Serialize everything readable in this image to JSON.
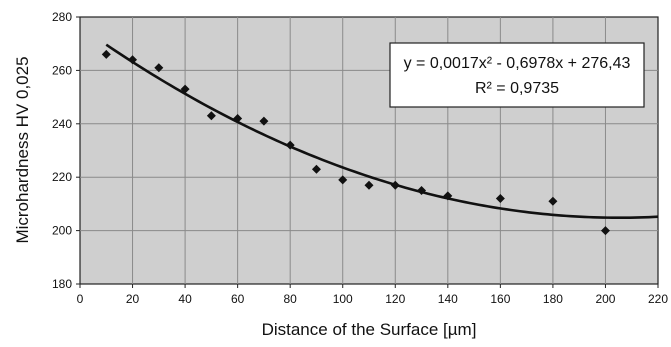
{
  "chart_data": {
    "type": "scatter",
    "xlabel": "Distance of the Surface [µm]",
    "ylabel": "Microhardness HV 0,025",
    "xlim": [
      0,
      220
    ],
    "ylim": [
      180,
      280
    ],
    "xticks": [
      0,
      20,
      40,
      60,
      80,
      100,
      120,
      140,
      160,
      180,
      200,
      220
    ],
    "yticks": [
      180,
      200,
      220,
      240,
      260,
      280
    ],
    "grid": true,
    "series": [
      {
        "x": [
          10,
          20,
          30,
          40,
          50,
          60,
          70,
          80,
          90,
          100,
          110,
          120,
          130,
          140,
          160,
          180,
          200
        ],
        "y": [
          266,
          264,
          261,
          253,
          243,
          242,
          241,
          232,
          223,
          219,
          217,
          217,
          215,
          213,
          212,
          211,
          200
        ]
      }
    ],
    "trendline": {
      "type": "polynomial",
      "coefficients": [
        0.0017,
        -0.6978,
        276.43
      ],
      "x_range": [
        10,
        220
      ]
    },
    "annotation": {
      "equation": "y = 0,0017x² - 0,6978x + 276,43",
      "r_squared": "R² = 0,9735"
    },
    "colors": {
      "plot_background": "#cfcfcf",
      "grid": "#8a8a8a",
      "marker": "#111111",
      "trendline": "#111111"
    }
  }
}
